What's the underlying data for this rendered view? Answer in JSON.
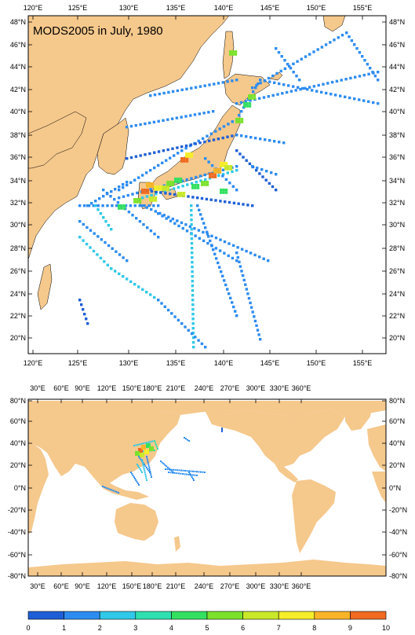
{
  "map1": {
    "title": "MODS2005 in July, 1980",
    "lon_labels": [
      "120°E",
      "125°E",
      "130°E",
      "135°E",
      "140°E",
      "145°E",
      "150°E",
      "155°E"
    ],
    "lat_labels": [
      "48°N",
      "46°N",
      "44°N",
      "42°N",
      "40°N",
      "38°N",
      "36°N",
      "34°N",
      "32°N",
      "30°N",
      "28°N",
      "26°N",
      "24°N",
      "22°N",
      "20°N"
    ]
  },
  "map2": {
    "lon_labels": [
      "30°E",
      "60°E",
      "90°E",
      "120°E",
      "150°E",
      "180°E",
      "210°E",
      "240°E",
      "270°E",
      "300°E",
      "330°E",
      "360°E"
    ],
    "lat_labels": [
      "80°N",
      "60°N",
      "40°N",
      "20°N",
      "0°N",
      "-20°N",
      "-40°N",
      "-60°N",
      "-80°N"
    ]
  },
  "colorbar": {
    "labels": [
      "0",
      "1",
      "2",
      "3",
      "4",
      "5",
      "6",
      "7",
      "8",
      "9",
      "10"
    ],
    "colors": [
      "#1f5fd6",
      "#2d8cf0",
      "#30c8e8",
      "#2ee0b0",
      "#33e060",
      "#7be22c",
      "#c9e82a",
      "#f5ee28",
      "#f9b428",
      "#f06a20"
    ]
  },
  "colors": {
    "land": "#f5c88c",
    "ocean": "#ffffff"
  }
}
